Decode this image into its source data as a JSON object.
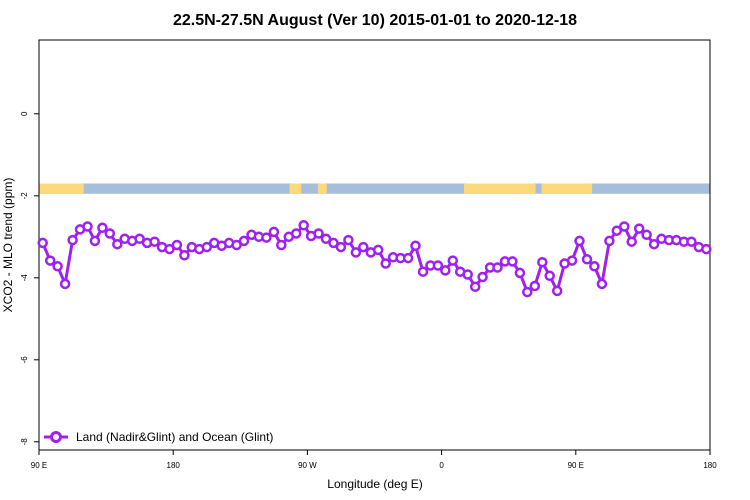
{
  "chart_data": {
    "type": "line",
    "title": "22.5N-27.5N August (Ver 10)   2015-01-01 to 2020-12-18",
    "xlabel": "Longitude (deg E)",
    "ylabel": "XCO2 - MLO trend (ppm)",
    "xlim": [
      90,
      540
    ],
    "ylim": [
      -8.2,
      1.8
    ],
    "x_ticks": [
      {
        "value": 90,
        "label": "90 E"
      },
      {
        "value": 180,
        "label": "180"
      },
      {
        "value": 270,
        "label": "90 W"
      },
      {
        "value": 360,
        "label": "0"
      },
      {
        "value": 450,
        "label": "90 E"
      },
      {
        "value": 540,
        "label": "180"
      }
    ],
    "y_ticks": [
      {
        "value": 0,
        "label": "0"
      },
      {
        "value": -2,
        "label": "-2"
      },
      {
        "value": -4,
        "label": "-4"
      },
      {
        "value": -6,
        "label": "-6"
      },
      {
        "value": -8,
        "label": "-8"
      }
    ],
    "map_strip": {
      "y_range": [
        -1.95,
        -1.7
      ],
      "ocean_color": "#a6bddb",
      "land_color": "#fcd97a",
      "land_spans": [
        [
          90,
          120
        ],
        [
          258,
          266
        ],
        [
          277,
          282
        ],
        [
          278,
          283
        ],
        [
          375,
          423
        ],
        [
          406,
          410
        ],
        [
          410,
          414
        ],
        [
          427,
          461
        ]
      ]
    },
    "series": [
      {
        "name": "Land (Nadir&Glint) and Ocean (Glint)",
        "color": "#a020f0",
        "x": [
          92.5,
          97.5,
          102.5,
          107.5,
          112.5,
          117.5,
          122.5,
          127.5,
          132.5,
          137.5,
          142.5,
          147.5,
          152.5,
          157.5,
          162.5,
          167.5,
          172.5,
          177.5,
          182.5,
          187.5,
          192.5,
          197.5,
          202.5,
          207.5,
          212.5,
          217.5,
          222.5,
          227.5,
          232.5,
          237.5,
          242.5,
          247.5,
          252.5,
          257.5,
          262.5,
          267.5,
          272.5,
          277.5,
          282.5,
          287.5,
          292.5,
          297.5,
          302.5,
          307.5,
          312.5,
          317.5,
          322.5,
          327.5,
          332.5,
          337.5,
          342.5,
          347.5,
          352.5,
          357.5,
          362.5,
          367.5,
          372.5,
          377.5,
          382.5,
          387.5,
          392.5,
          397.5,
          402.5,
          407.5,
          412.5,
          417.5,
          422.5,
          427.5,
          432.5,
          437.5,
          442.5,
          447.5,
          452.5,
          457.5,
          462.5,
          467.5,
          472.5,
          477.5,
          482.5,
          487.5,
          492.5,
          497.5,
          502.5,
          507.5,
          512.5,
          517.5,
          522.5,
          527.5,
          532.5,
          537.5
        ],
        "y": [
          -3.15,
          -3.58,
          -3.72,
          -4.15,
          -3.08,
          -2.82,
          -2.75,
          -3.1,
          -2.78,
          -2.92,
          -3.18,
          -3.05,
          -3.1,
          -3.05,
          -3.15,
          -3.12,
          -3.25,
          -3.3,
          -3.2,
          -3.45,
          -3.25,
          -3.3,
          -3.25,
          -3.15,
          -3.22,
          -3.15,
          -3.2,
          -3.1,
          -2.95,
          -3.0,
          -3.02,
          -2.88,
          -3.2,
          -3.0,
          -2.92,
          -2.72,
          -2.98,
          -2.92,
          -3.05,
          -3.15,
          -3.25,
          -3.08,
          -3.38,
          -3.25,
          -3.38,
          -3.32,
          -3.65,
          -3.5,
          -3.52,
          -3.52,
          -3.22,
          -3.85,
          -3.7,
          -3.7,
          -3.82,
          -3.58,
          -3.85,
          -3.92,
          -4.22,
          -3.98,
          -3.75,
          -3.75,
          -3.6,
          -3.6,
          -3.88,
          -4.35,
          -4.2,
          -3.62,
          -3.95,
          -4.32,
          -3.65,
          -3.58,
          -3.1,
          -3.55,
          -3.72,
          -4.15,
          -3.1,
          -2.85,
          -2.75,
          -3.12,
          -2.8,
          -2.95,
          -3.18,
          -3.05,
          -3.08,
          -3.08,
          -3.12,
          -3.12,
          -3.25,
          -3.3
        ]
      }
    ],
    "legend": "bottom-left",
    "grid": false
  }
}
